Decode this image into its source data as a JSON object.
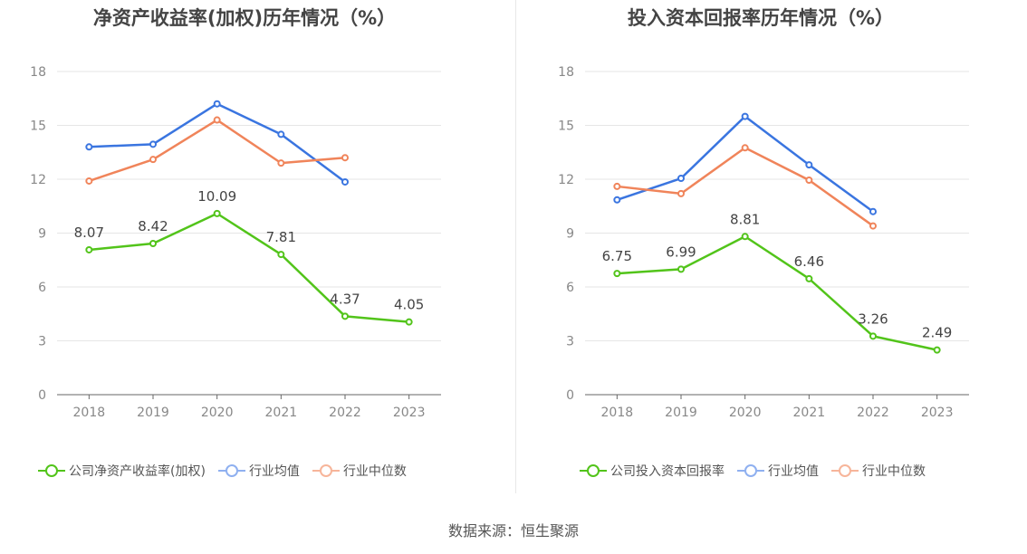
{
  "chart_data": [
    {
      "type": "line",
      "title": "净资产收益率(加权)历年情况（%）",
      "categories": [
        "2018",
        "2019",
        "2020",
        "2021",
        "2022",
        "2023"
      ],
      "ylim": [
        0,
        18
      ],
      "yticks": [
        "0",
        "3",
        "6",
        "9",
        "12",
        "15",
        "18"
      ],
      "series": [
        {
          "name": "公司净资产收益率(加权)",
          "color": "#52c41a",
          "values": [
            8.07,
            8.42,
            10.09,
            7.81,
            4.37,
            4.05
          ],
          "labels": [
            "8.07",
            "8.42",
            "10.09",
            "7.81",
            "4.37",
            "4.05"
          ]
        },
        {
          "name": "行业均值",
          "color": "#3a75e0",
          "values": [
            13.8,
            13.95,
            16.2,
            14.5,
            11.85,
            null
          ]
        },
        {
          "name": "行业中位数",
          "color": "#f0845a",
          "values": [
            11.9,
            13.1,
            15.3,
            12.9,
            13.2,
            null
          ]
        }
      ],
      "legend_colors": [
        "#52c41a",
        "#8fb0f0",
        "#f7b59a"
      ],
      "grid": true
    },
    {
      "type": "line",
      "title": "投入资本回报率历年情况（%）",
      "categories": [
        "2018",
        "2019",
        "2020",
        "2021",
        "2022",
        "2023"
      ],
      "ylim": [
        0,
        18
      ],
      "yticks": [
        "0",
        "3",
        "6",
        "9",
        "12",
        "15",
        "18"
      ],
      "series": [
        {
          "name": "公司投入资本回报率",
          "color": "#52c41a",
          "values": [
            6.75,
            6.99,
            8.81,
            6.46,
            3.26,
            2.49
          ],
          "labels": [
            "6.75",
            "6.99",
            "8.81",
            "6.46",
            "3.26",
            "2.49"
          ]
        },
        {
          "name": "行业均值",
          "color": "#3a75e0",
          "values": [
            10.85,
            12.05,
            15.5,
            12.8,
            10.2,
            null
          ]
        },
        {
          "name": "行业中位数",
          "color": "#f0845a",
          "values": [
            11.6,
            11.2,
            13.75,
            11.95,
            9.4,
            null
          ]
        }
      ],
      "legend_colors": [
        "#52c41a",
        "#8fb0f0",
        "#f7b59a"
      ],
      "grid": true
    }
  ],
  "source": "数据来源：恒生聚源"
}
